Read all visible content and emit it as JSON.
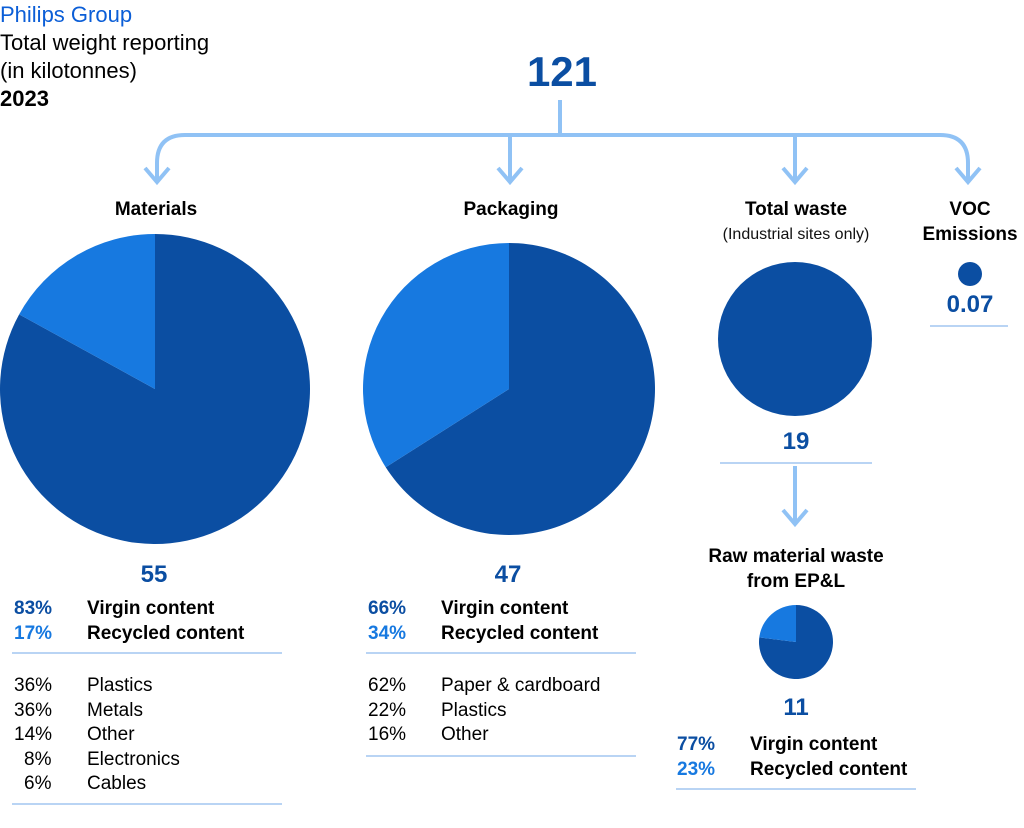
{
  "header": {
    "brand": "Philips Group",
    "line1": "Total weight reporting",
    "line2": "(in kilotonnes)",
    "year": "2023"
  },
  "colors": {
    "dark": "#0b4ea2",
    "light": "#1779e0",
    "arrow": "#90c2f5",
    "separator": "#b9d4f4"
  },
  "chart_data": {
    "type": "pie",
    "total": 121,
    "total_label": "121",
    "charts": [
      {
        "title": "Materials",
        "value": 55,
        "value_label": "55",
        "slices": [
          {
            "label": "Virgin content",
            "pct": 83,
            "pct_label": "83%"
          },
          {
            "label": "Recycled content",
            "pct": 17,
            "pct_label": "17%"
          }
        ],
        "breakdown": [
          {
            "pct_label": "36%",
            "label": "Plastics"
          },
          {
            "pct_label": "36%",
            "label": "Metals"
          },
          {
            "pct_label": "14%",
            "label": "Other"
          },
          {
            "pct_label": "8%",
            "label": "Electronics"
          },
          {
            "pct_label": "6%",
            "label": "Cables"
          }
        ]
      },
      {
        "title": "Packaging",
        "value": 47,
        "value_label": "47",
        "slices": [
          {
            "label": "Virgin content",
            "pct": 66,
            "pct_label": "66%"
          },
          {
            "label": "Recycled content",
            "pct": 34,
            "pct_label": "34%"
          }
        ],
        "breakdown": [
          {
            "pct_label": "62%",
            "label": "Paper & cardboard"
          },
          {
            "pct_label": "22%",
            "label": "Plastics"
          },
          {
            "pct_label": "16%",
            "label": "Other"
          }
        ]
      },
      {
        "title": "Total waste",
        "subtitle": "(Industrial sites only)",
        "value": 19,
        "value_label": "19",
        "slices": [
          {
            "label": "",
            "pct": 100
          }
        ]
      },
      {
        "title_line1": "VOC",
        "title_line2": "Emissions",
        "value": 0.07,
        "value_label": "0.07",
        "slices": [
          {
            "label": "",
            "pct": 100
          }
        ]
      },
      {
        "title_line1": "Raw material waste",
        "title_line2": "from EP&L",
        "value": 11,
        "value_label": "11",
        "slices": [
          {
            "label": "Virgin content",
            "pct": 77,
            "pct_label": "77%"
          },
          {
            "label": "Recycled content",
            "pct": 23,
            "pct_label": "23%"
          }
        ]
      }
    ]
  }
}
